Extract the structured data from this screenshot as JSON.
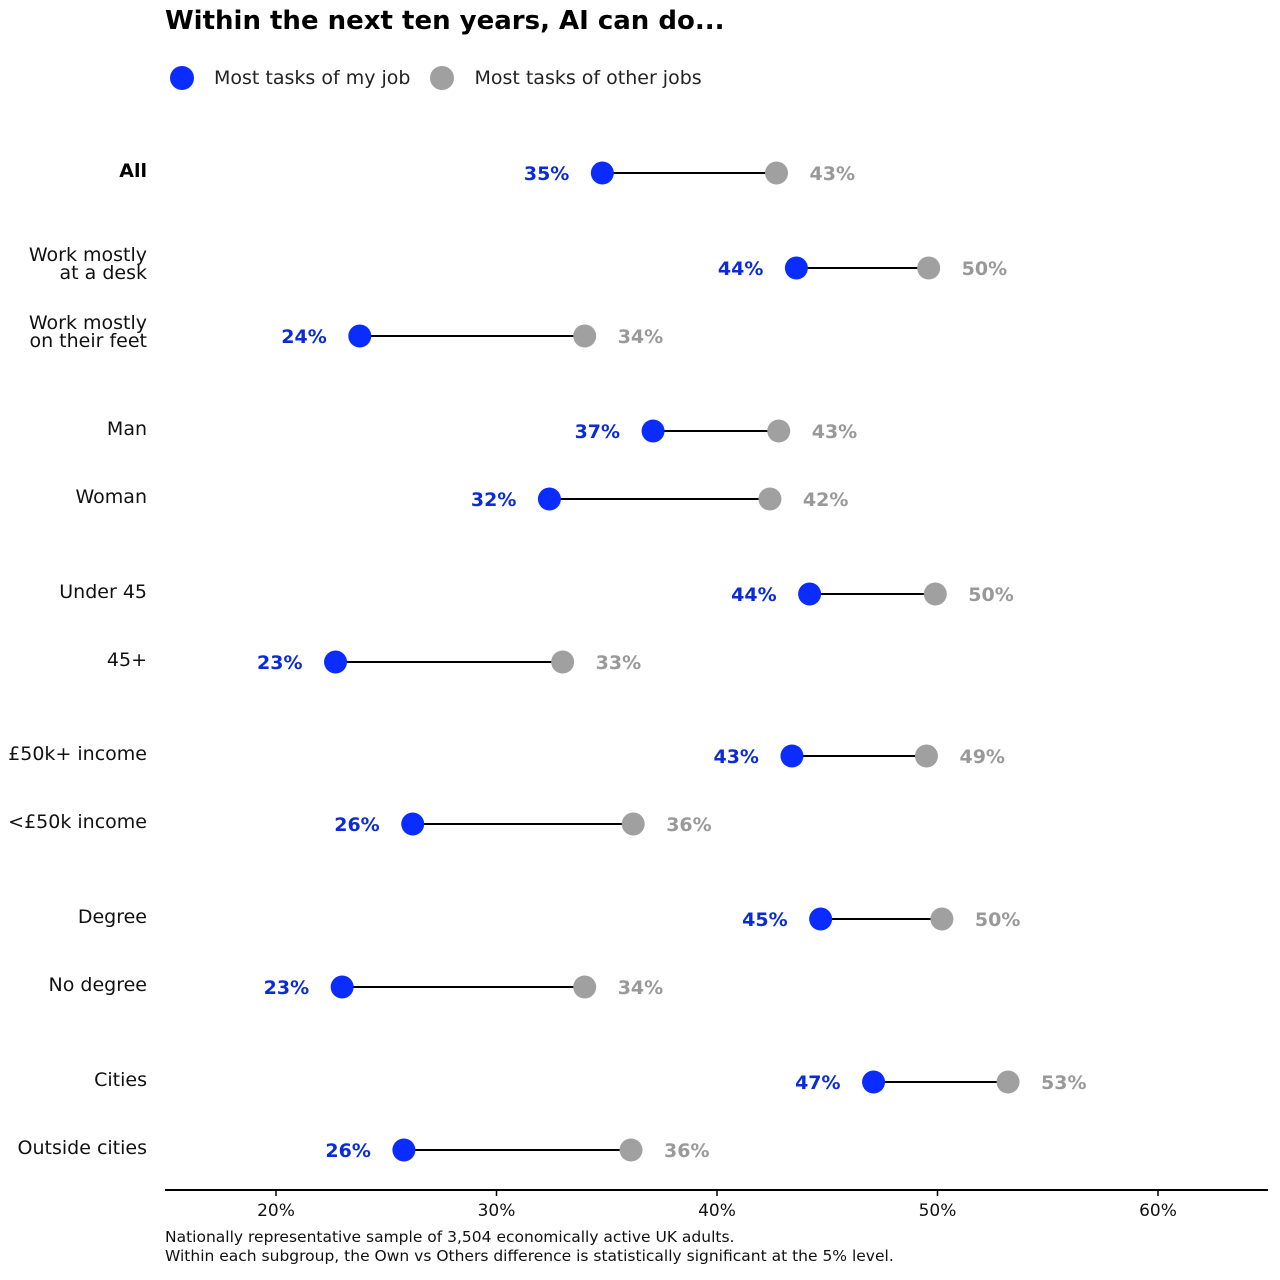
{
  "chart_data": {
    "type": "dumbbell",
    "title": "Within the next ten years, AI can do...",
    "xlim": [
      15,
      65
    ],
    "x_ticks": [
      20,
      30,
      40,
      50,
      60
    ],
    "x_tick_labels": [
      "20%",
      "30%",
      "40%",
      "50%",
      "60%"
    ],
    "legend_position": "top-left",
    "grid": false,
    "series": [
      {
        "name": "Most tasks of my job",
        "color": "#0a2cff",
        "label_color": "#0b2bd6"
      },
      {
        "name": "Most tasks of other jobs",
        "color": "#a0a0a0",
        "label_color": "#999999"
      }
    ],
    "groups": [
      {
        "rows": [
          {
            "label": [
              "All"
            ],
            "bold": true,
            "own": 34.8,
            "others": 42.7,
            "own_label": "35%",
            "others_label": "43%"
          }
        ]
      },
      {
        "rows": [
          {
            "label": [
              "Work mostly",
              "at a desk"
            ],
            "own": 43.6,
            "others": 49.6,
            "own_label": "44%",
            "others_label": "50%"
          },
          {
            "label": [
              "Work mostly",
              "on their feet"
            ],
            "own": 23.8,
            "others": 34.0,
            "own_label": "24%",
            "others_label": "34%"
          }
        ]
      },
      {
        "rows": [
          {
            "label": [
              "Man"
            ],
            "own": 37.1,
            "others": 42.8,
            "own_label": "37%",
            "others_label": "43%"
          },
          {
            "label": [
              "Woman"
            ],
            "own": 32.4,
            "others": 42.4,
            "own_label": "32%",
            "others_label": "42%"
          }
        ]
      },
      {
        "rows": [
          {
            "label": [
              "Under 45"
            ],
            "own": 44.2,
            "others": 49.9,
            "own_label": "44%",
            "others_label": "50%"
          },
          {
            "label": [
              "45+"
            ],
            "own": 22.7,
            "others": 33.0,
            "own_label": "23%",
            "others_label": "33%"
          }
        ]
      },
      {
        "rows": [
          {
            "label": [
              "£50k+ income"
            ],
            "own": 43.4,
            "others": 49.5,
            "own_label": "43%",
            "others_label": "49%"
          },
          {
            "label": [
              "<£50k income"
            ],
            "own": 26.2,
            "others": 36.2,
            "own_label": "26%",
            "others_label": "36%"
          }
        ]
      },
      {
        "rows": [
          {
            "label": [
              "Degree"
            ],
            "own": 44.7,
            "others": 50.2,
            "own_label": "45%",
            "others_label": "50%"
          },
          {
            "label": [
              "No degree"
            ],
            "own": 23.0,
            "others": 34.0,
            "own_label": "23%",
            "others_label": "34%"
          }
        ]
      },
      {
        "rows": [
          {
            "label": [
              "Cities"
            ],
            "own": 47.1,
            "others": 53.2,
            "own_label": "47%",
            "others_label": "53%"
          },
          {
            "label": [
              "Outside cities"
            ],
            "own": 25.8,
            "others": 36.1,
            "own_label": "26%",
            "others_label": "36%"
          }
        ]
      }
    ],
    "footnote": [
      "Nationally representative sample of 3,504 economically active UK adults.",
      "Within each subgroup, the Own vs Others difference is statistically significant at the 5% level."
    ]
  }
}
